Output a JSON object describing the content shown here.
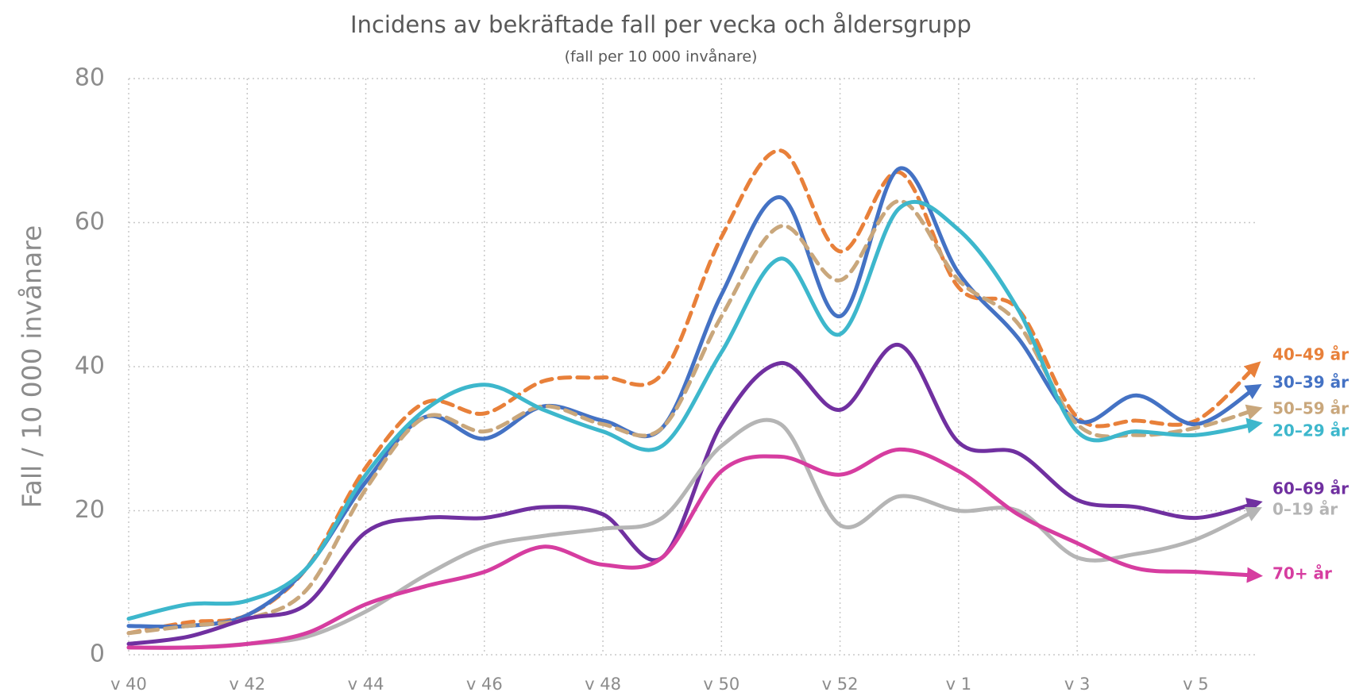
{
  "chart_data": {
    "type": "line",
    "title": "Incidens av bekräftade fall per vecka och åldersgrupp",
    "subtitle": "(fall per 10 000 invånare)",
    "y_label": "Fall / 10 000 invånare",
    "categories": [
      "v 40",
      null,
      "v 42",
      null,
      "v 44",
      null,
      "v 46",
      null,
      "v 48",
      null,
      "v 50",
      null,
      "v 52",
      null,
      "v 1",
      null,
      "v 3",
      null,
      "v 5",
      null
    ],
    "ylim": [
      0,
      80
    ],
    "yticks": [
      0,
      20,
      40,
      60,
      80
    ],
    "grid": true,
    "series": [
      {
        "name": "40–49 år",
        "color": "#e8803a",
        "dashed": true,
        "values": [
          3,
          4.5,
          5.5,
          12,
          26,
          35,
          33.5,
          38,
          38.5,
          39,
          58,
          70,
          56,
          67,
          51,
          48,
          33,
          32.5,
          32.5,
          40
        ]
      },
      {
        "name": "30–39 år",
        "color": "#4472c4",
        "dashed": false,
        "values": [
          4,
          4,
          5.5,
          12,
          24,
          33,
          30,
          34.5,
          32.5,
          31.5,
          50,
          63.5,
          47,
          67.5,
          53,
          44,
          32.5,
          36,
          32,
          37
        ]
      },
      {
        "name": "50–59 år",
        "color": "#c9a77c",
        "dashed": true,
        "values": [
          3,
          4,
          5,
          9,
          23,
          33,
          31,
          34.5,
          32,
          31.5,
          47,
          59.5,
          52,
          63,
          52,
          46,
          32,
          30.5,
          31.5,
          34
        ]
      },
      {
        "name": "20–29 år",
        "color": "#3db7cc",
        "dashed": false,
        "values": [
          5,
          7,
          7.5,
          12,
          25,
          34,
          37.5,
          34,
          31,
          29,
          42,
          55,
          44.5,
          62,
          59,
          48,
          31,
          31,
          30.5,
          32
        ]
      },
      {
        "name": "60–69 år",
        "color": "#7030a0",
        "dashed": false,
        "values": [
          1.5,
          2.5,
          5,
          7,
          17,
          19,
          19,
          20.5,
          19.5,
          13.5,
          32,
          40.5,
          34,
          43,
          29.5,
          28,
          21.5,
          20.5,
          19,
          21
        ]
      },
      {
        "name": "0–19 år",
        "color": "#b5b5b5",
        "dashed": false,
        "values": [
          1,
          1,
          1.5,
          2.5,
          6,
          11,
          15,
          16.5,
          17.5,
          19,
          29,
          32,
          18,
          22,
          20,
          20,
          13.5,
          14,
          16,
          20
        ]
      },
      {
        "name": "70+ år",
        "color": "#d63da0",
        "dashed": false,
        "values": [
          1,
          1,
          1.5,
          3,
          7,
          9.5,
          11.5,
          15,
          12.5,
          13.5,
          25.5,
          27.5,
          25,
          28.5,
          25.5,
          19.5,
          15.5,
          12,
          11.5,
          11
        ]
      }
    ]
  }
}
